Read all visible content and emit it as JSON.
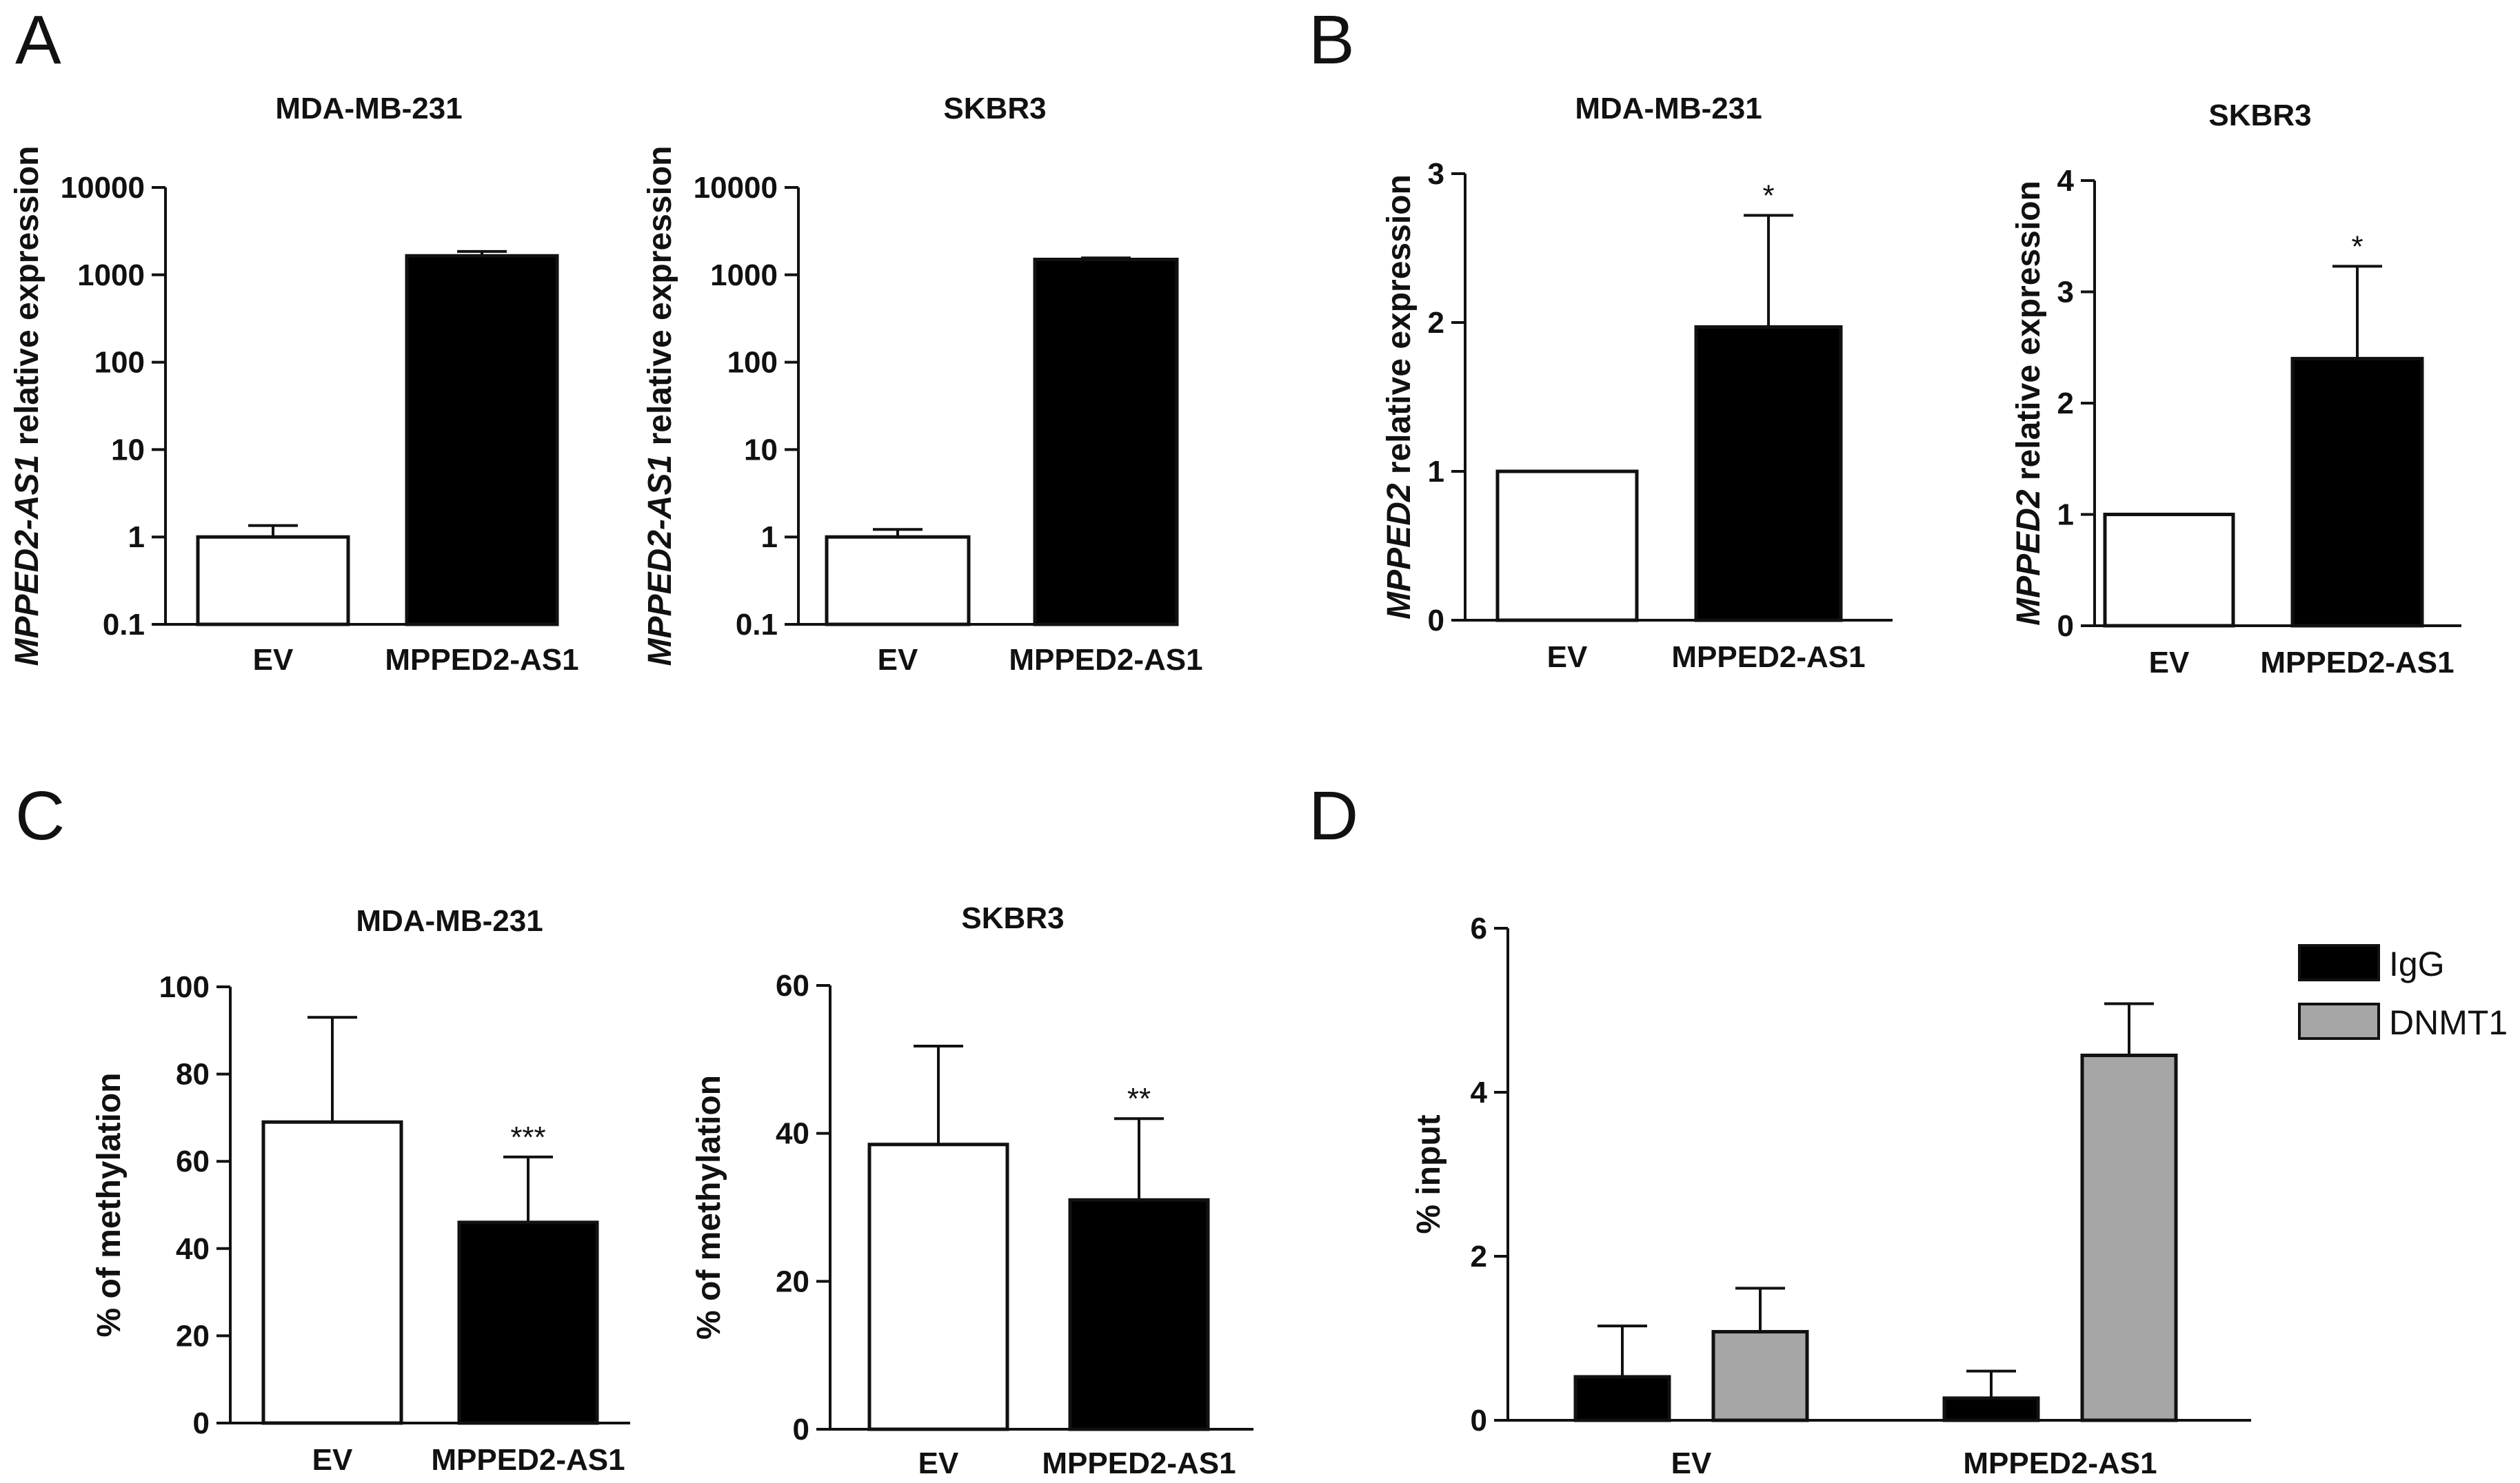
{
  "panels": [
    {
      "letter": "A"
    },
    {
      "letter": "B"
    },
    {
      "letter": "C"
    },
    {
      "letter": "D"
    }
  ],
  "chart_data": [
    {
      "id": "A1",
      "panel": "A",
      "type": "bar",
      "scale": "log",
      "title": "MDA-MB-231",
      "ylabel_italic": "MPPED2-AS1",
      "ylabel_rest": " relative expression",
      "categories": [
        "EV",
        "MPPED2-AS1"
      ],
      "values": [
        1,
        1650
      ],
      "errors": [
        0.35,
        200
      ],
      "colors": [
        "#ffffff",
        "#000000"
      ],
      "yticks": [
        0.1,
        1,
        10,
        100,
        1000,
        10000
      ],
      "ytick_labels": [
        "0.1",
        "1",
        "10",
        "100",
        "1000",
        "10000"
      ],
      "ylim": [
        0.1,
        10000
      ],
      "significance": [
        "",
        ""
      ]
    },
    {
      "id": "A2",
      "panel": "A",
      "type": "bar",
      "scale": "log",
      "title": "SKBR3",
      "ylabel_italic": "MPPED2-AS1",
      "ylabel_rest": " relative expression",
      "categories": [
        "EV",
        "MPPED2-AS1"
      ],
      "values": [
        1,
        1500
      ],
      "errors": [
        0.22,
        60
      ],
      "colors": [
        "#ffffff",
        "#000000"
      ],
      "yticks": [
        0.1,
        1,
        10,
        100,
        1000,
        10000
      ],
      "ytick_labels": [
        "0.1",
        "1",
        "10",
        "100",
        "1000",
        "10000"
      ],
      "ylim": [
        0.1,
        10000
      ],
      "significance": [
        "",
        ""
      ]
    },
    {
      "id": "B1",
      "panel": "B",
      "type": "bar",
      "scale": "linear",
      "title": "MDA-MB-231",
      "ylabel_italic": "MPPED2",
      "ylabel_rest": " relative expression",
      "categories": [
        "EV",
        "MPPED2-AS1"
      ],
      "values": [
        1,
        1.97
      ],
      "errors": [
        0,
        0.75
      ],
      "colors": [
        "#ffffff",
        "#000000"
      ],
      "yticks": [
        0,
        1,
        2,
        3
      ],
      "ytick_labels": [
        "0",
        "1",
        "2",
        "3"
      ],
      "ylim": [
        0,
        3
      ],
      "significance": [
        "",
        "*"
      ]
    },
    {
      "id": "B2",
      "panel": "B",
      "type": "bar",
      "scale": "linear",
      "title": "SKBR3",
      "ylabel_italic": "MPPED2",
      "ylabel_rest": " relative expression",
      "categories": [
        "EV",
        "MPPED2-AS1"
      ],
      "values": [
        1,
        2.4
      ],
      "errors": [
        0,
        0.83
      ],
      "colors": [
        "#ffffff",
        "#000000"
      ],
      "yticks": [
        0,
        1,
        2,
        3,
        4
      ],
      "ytick_labels": [
        "0",
        "1",
        "2",
        "3",
        "4"
      ],
      "ylim": [
        0,
        4
      ],
      "significance": [
        "",
        "*"
      ]
    },
    {
      "id": "C1",
      "panel": "C",
      "type": "bar",
      "scale": "linear",
      "title": "MDA-MB-231",
      "ylabel_italic": "",
      "ylabel_rest": "% of methylation",
      "categories": [
        "EV",
        "MPPED2-AS1"
      ],
      "values": [
        69,
        46
      ],
      "errors": [
        24,
        15
      ],
      "colors": [
        "#ffffff",
        "#000000"
      ],
      "yticks": [
        0,
        20,
        40,
        60,
        80,
        100
      ],
      "ytick_labels": [
        "0",
        "20",
        "40",
        "60",
        "80",
        "100"
      ],
      "ylim": [
        0,
        100
      ],
      "significance": [
        "",
        "***"
      ]
    },
    {
      "id": "C2",
      "panel": "C",
      "type": "bar",
      "scale": "linear",
      "title": "SKBR3",
      "ylabel_italic": "",
      "ylabel_rest": "% of methylation",
      "categories": [
        "EV",
        "MPPED2-AS1"
      ],
      "values": [
        38.5,
        31
      ],
      "errors": [
        13.3,
        11
      ],
      "colors": [
        "#ffffff",
        "#000000"
      ],
      "yticks": [
        0,
        20,
        40,
        60
      ],
      "ytick_labels": [
        "0",
        "20",
        "40",
        "60"
      ],
      "ylim": [
        0,
        60
      ],
      "significance": [
        "",
        "**"
      ]
    },
    {
      "id": "D",
      "panel": "D",
      "type": "grouped-bar",
      "scale": "linear",
      "title": "",
      "ylabel_italic": "",
      "ylabel_rest": "% input",
      "categories": [
        "EV",
        "MPPED2-AS1"
      ],
      "series": [
        {
          "name": "IgG",
          "color": "#000000",
          "values": [
            0.53,
            0.27
          ],
          "errors": [
            0.62,
            0.33
          ]
        },
        {
          "name": "DNMT1",
          "color": "#a6a6a6",
          "values": [
            1.08,
            4.45
          ],
          "errors": [
            0.53,
            0.63
          ]
        }
      ],
      "yticks": [
        0,
        2,
        4,
        6
      ],
      "ytick_labels": [
        "0",
        "2",
        "4",
        "6"
      ],
      "ylim": [
        0,
        6
      ],
      "legend": [
        "IgG",
        "DNMT1"
      ],
      "legend_position": "top-right"
    }
  ]
}
